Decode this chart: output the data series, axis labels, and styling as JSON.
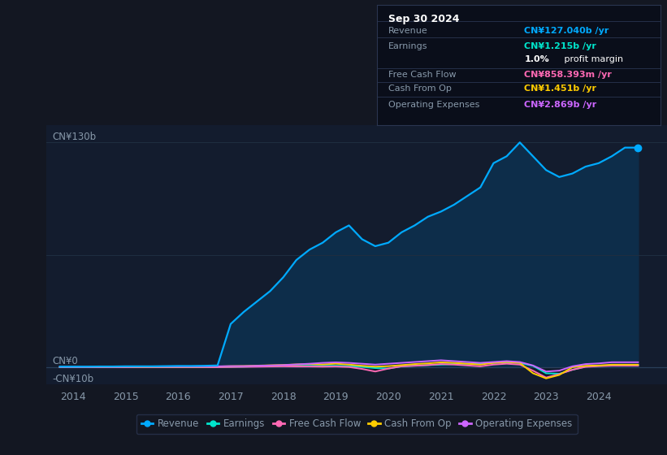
{
  "background_color": "#131722",
  "plot_bg_color": "#131c2e",
  "text_color": "#8899aa",
  "white_color": "#ffffff",
  "revenue_color": "#00aaff",
  "earnings_color": "#00e5cc",
  "fcf_color": "#ff69b4",
  "cashfromop_color": "#ffcc00",
  "opex_color": "#cc66ff",
  "revenue_fill_color": "#0d2d4a",
  "ylim": [
    -10,
    140
  ],
  "xlim": [
    2013.5,
    2025.3
  ],
  "xticks": [
    2014,
    2015,
    2016,
    2017,
    2018,
    2019,
    2020,
    2021,
    2022,
    2023,
    2024
  ],
  "hlines": [
    {
      "y": 130,
      "color": "#1e2d40",
      "lw": 0.8
    },
    {
      "y": 65,
      "color": "#1e2d40",
      "lw": 0.8
    },
    {
      "y": 0,
      "color": "#2a3f5a",
      "lw": 0.9
    },
    {
      "y": -10,
      "color": "#1e2d40",
      "lw": 0.8
    }
  ],
  "ylabel_top": "CN¥130b",
  "ylabel_zero": "CN¥0",
  "ylabel_neg": "-CN¥10b",
  "years": [
    2013.75,
    2014.0,
    2014.25,
    2014.5,
    2014.75,
    2015.0,
    2015.25,
    2015.5,
    2015.75,
    2016.0,
    2016.25,
    2016.5,
    2016.75,
    2017.0,
    2017.25,
    2017.5,
    2017.75,
    2018.0,
    2018.25,
    2018.5,
    2018.75,
    2019.0,
    2019.25,
    2019.5,
    2019.75,
    2020.0,
    2020.25,
    2020.5,
    2020.75,
    2021.0,
    2021.25,
    2021.5,
    2021.75,
    2022.0,
    2022.25,
    2022.5,
    2022.75,
    2023.0,
    2023.25,
    2023.5,
    2023.75,
    2024.0,
    2024.25,
    2024.5,
    2024.75
  ],
  "revenue": [
    0.3,
    0.3,
    0.3,
    0.4,
    0.4,
    0.5,
    0.5,
    0.5,
    0.6,
    0.7,
    0.7,
    0.8,
    1.0,
    25,
    32,
    38,
    44,
    52,
    62,
    68,
    72,
    78,
    82,
    74,
    70,
    72,
    78,
    82,
    87,
    90,
    94,
    99,
    104,
    118,
    122,
    130,
    122,
    114,
    110,
    112,
    116,
    118,
    122,
    127,
    127
  ],
  "earnings": [
    0.1,
    0.1,
    0.1,
    0.1,
    0.1,
    0.1,
    0.1,
    0.1,
    0.1,
    0.1,
    0.1,
    0.1,
    0.1,
    0.2,
    0.3,
    0.5,
    0.7,
    0.8,
    0.8,
    0.8,
    0.8,
    0.8,
    0.6,
    0.2,
    -0.5,
    -0.8,
    0.5,
    0.9,
    1.2,
    1.5,
    1.8,
    2.0,
    2.2,
    2.5,
    2.8,
    2.5,
    0.8,
    -3.5,
    -3.8,
    -1.5,
    0.3,
    0.8,
    1.0,
    1.215,
    1.215
  ],
  "fcf": [
    0.0,
    0.0,
    0.0,
    0.0,
    0.0,
    0.0,
    0.0,
    0.0,
    0.0,
    0.0,
    0.0,
    0.0,
    0.0,
    0.1,
    0.2,
    0.3,
    0.4,
    0.5,
    0.4,
    0.4,
    0.3,
    0.4,
    0.1,
    -1.0,
    -2.5,
    -0.8,
    0.5,
    0.8,
    1.2,
    1.8,
    1.5,
    1.0,
    0.5,
    1.5,
    2.0,
    1.5,
    -2.0,
    -6.0,
    -4.0,
    -1.5,
    0.2,
    0.6,
    0.858,
    0.858,
    0.858
  ],
  "cashfromop": [
    0.0,
    0.0,
    0.0,
    0.0,
    0.0,
    0.0,
    0.1,
    0.1,
    0.1,
    0.2,
    0.2,
    0.3,
    0.4,
    0.6,
    0.7,
    0.9,
    1.1,
    1.3,
    1.6,
    1.8,
    1.6,
    2.0,
    1.5,
    0.8,
    0.3,
    0.6,
    1.2,
    1.8,
    2.2,
    2.8,
    2.5,
    2.0,
    1.5,
    2.5,
    3.0,
    2.5,
    -3.5,
    -6.5,
    -4.5,
    0.0,
    0.8,
    1.0,
    1.451,
    1.451,
    1.451
  ],
  "opex": [
    0.1,
    0.1,
    0.1,
    0.1,
    0.1,
    0.1,
    0.2,
    0.2,
    0.2,
    0.3,
    0.3,
    0.4,
    0.5,
    0.6,
    0.6,
    0.8,
    1.0,
    1.2,
    1.6,
    2.0,
    2.5,
    2.8,
    2.5,
    2.0,
    1.5,
    2.0,
    2.5,
    3.0,
    3.5,
    4.0,
    3.5,
    3.0,
    2.5,
    3.0,
    3.5,
    3.0,
    1.0,
    -2.5,
    -2.0,
    0.5,
    1.8,
    2.2,
    2.869,
    2.869,
    2.869
  ],
  "tooltip": {
    "title": "Sep 30 2024",
    "title_color": "#ffffff",
    "bg": "#0a0e1a",
    "border_color": "#2a3550",
    "rows": [
      {
        "label": "Revenue",
        "value": "CN¥127.040b /yr",
        "value_color": "#00aaff",
        "label_color": "#8899aa"
      },
      {
        "label": "Earnings",
        "value": "CN¥1.215b /yr",
        "value_color": "#00e5cc",
        "label_color": "#8899aa"
      },
      {
        "label": "",
        "value": "1.0%",
        "value_color": "#ffffff",
        "label_color": "",
        "suffix": " profit margin",
        "suffix_color": "#ffffff"
      },
      {
        "label": "Free Cash Flow",
        "value": "CN¥858.393m /yr",
        "value_color": "#ff69b4",
        "label_color": "#8899aa"
      },
      {
        "label": "Cash From Op",
        "value": "CN¥1.451b /yr",
        "value_color": "#ffcc00",
        "label_color": "#8899aa"
      },
      {
        "label": "Operating Expenses",
        "value": "CN¥2.869b /yr",
        "value_color": "#cc66ff",
        "label_color": "#8899aa"
      }
    ]
  },
  "legend": [
    {
      "label": "Revenue",
      "color": "#00aaff"
    },
    {
      "label": "Earnings",
      "color": "#00e5cc"
    },
    {
      "label": "Free Cash Flow",
      "color": "#ff69b4"
    },
    {
      "label": "Cash From Op",
      "color": "#ffcc00"
    },
    {
      "label": "Operating Expenses",
      "color": "#cc66ff"
    }
  ]
}
